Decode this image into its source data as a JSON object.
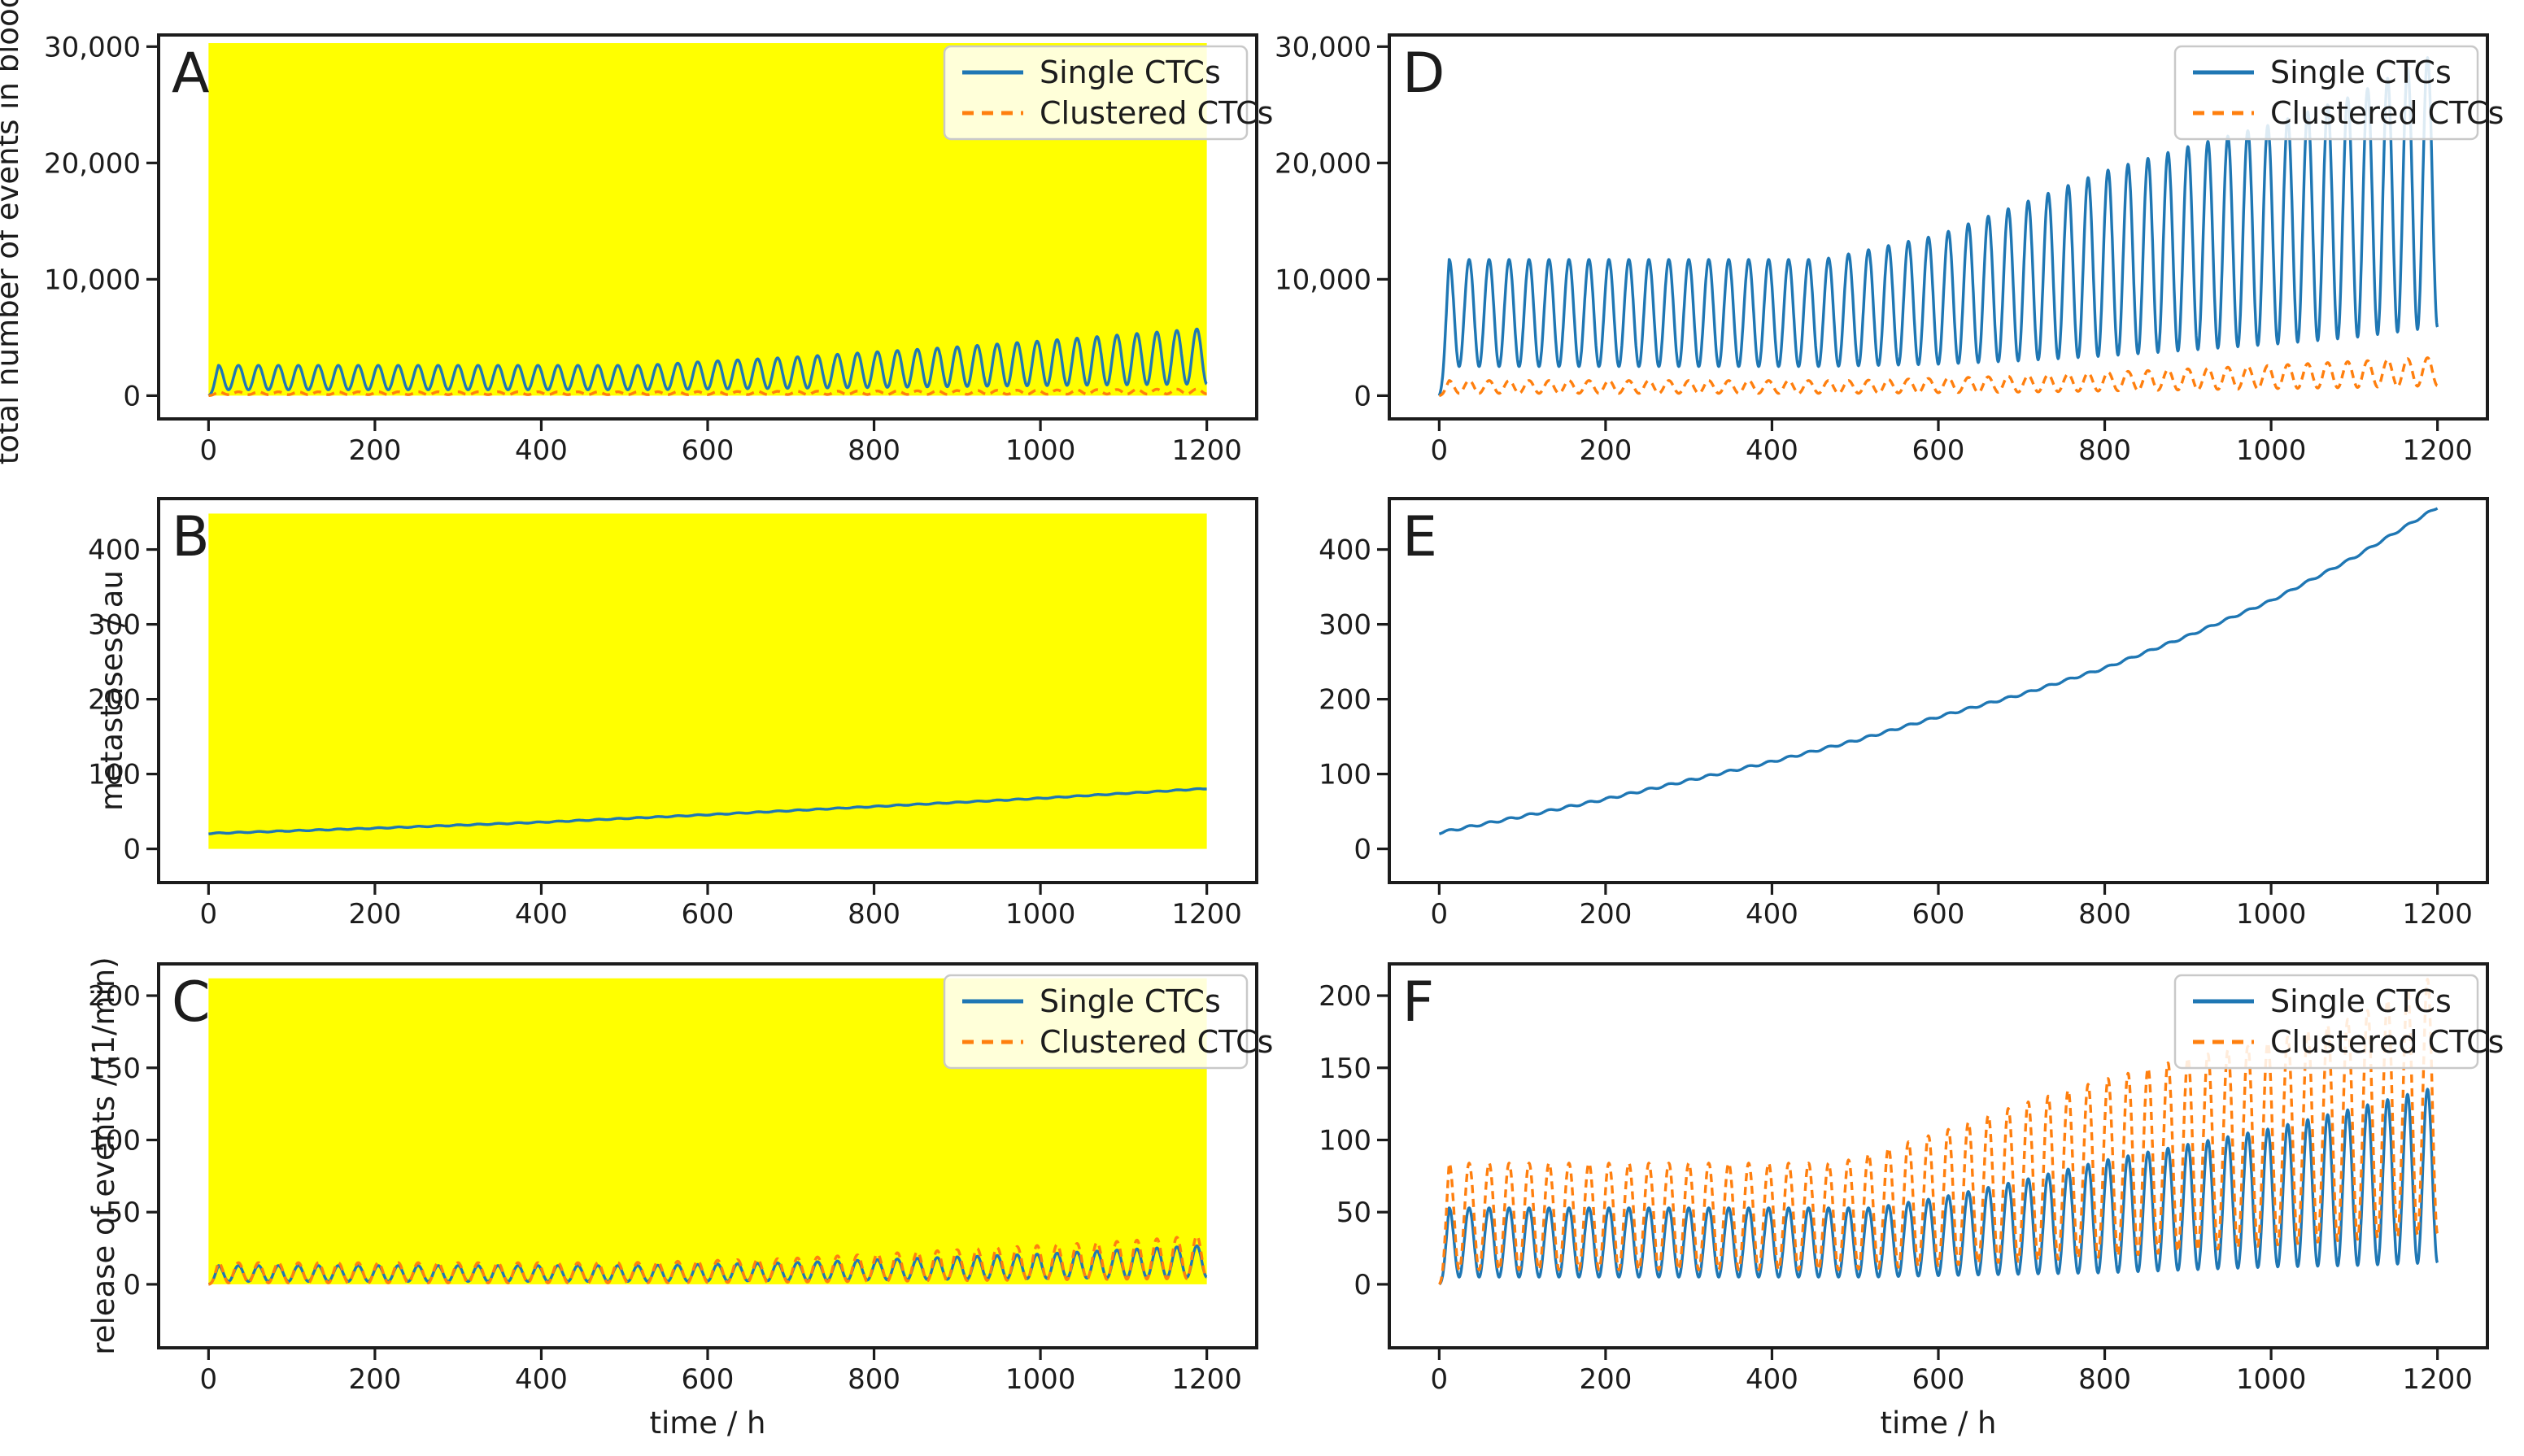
{
  "chart_data": {
    "figure_type": "multi-panel line chart (2 columns x 3 rows)",
    "oscillation_period_h": 24,
    "colors": {
      "single_ctcs": "#1f77b4",
      "clustered_ctcs": "#ff7f0e",
      "treatment_highlight": "#ffff00",
      "axis": "#1c1c1c",
      "legend_border": "#c9c9c9",
      "legend_fill": "rgba(255,255,255,0.85)"
    },
    "shared_x": {
      "xlabel": "time / h",
      "xlim": [
        -60,
        1260
      ],
      "xticks": [
        0,
        200,
        400,
        600,
        800,
        1000,
        1200
      ],
      "xtick_labels": [
        "0",
        "200",
        "400",
        "600",
        "800",
        "1000",
        "1200"
      ]
    },
    "legend": {
      "position": "upper right",
      "entries": [
        "Single CTCs",
        "Clustered CTCs"
      ]
    },
    "panels": [
      {
        "panel_label": "A",
        "type": "line",
        "grid": {
          "row": 0,
          "col": 0
        },
        "ylabel": "total number of events in blood",
        "xlabel": null,
        "xlim": [
          -60,
          1260
        ],
        "ylim": [
          -2000,
          31000
        ],
        "xticks": [
          0,
          200,
          400,
          600,
          800,
          1000,
          1200
        ],
        "xtick_labels": [
          "0",
          "200",
          "400",
          "600",
          "800",
          "1000",
          "1200"
        ],
        "yticks": [
          0,
          10000,
          20000,
          30000
        ],
        "ytick_labels": [
          "0",
          "10,000",
          "20,000",
          "30,000"
        ],
        "highlight": {
          "x": [
            0,
            1200
          ],
          "y": [
            0,
            30300
          ]
        },
        "legend_labels": [
          "Single CTCs",
          "Clustered CTCs"
        ],
        "series": [
          {
            "name": "Single CTCs",
            "color_key": "single_ctcs",
            "style": "solid",
            "wave": {
              "period": 24,
              "envelope": [
                [
                  0,
                  0,
                  0
                ],
                [
                  12,
                  500,
                  2600
                ],
                [
                  520,
                  500,
                  2600
                ],
                [
                  600,
                  560,
                  2950
                ],
                [
                  700,
                  630,
                  3300
                ],
                [
                  800,
                  700,
                  3750
                ],
                [
                  900,
                  780,
                  4200
                ],
                [
                  1000,
                  860,
                  4700
                ],
                [
                  1100,
                  930,
                  5250
                ],
                [
                  1200,
                  1000,
                  5800
                ]
              ]
            }
          },
          {
            "name": "Clustered CTCs",
            "color_key": "clustered_ctcs",
            "style": "dashed",
            "wave": {
              "period": 24,
              "envelope": [
                [
                  0,
                  0,
                  0
                ],
                [
                  12,
                  80,
                  330
                ],
                [
                  520,
                  80,
                  330
                ],
                [
                  800,
                  100,
                  400
                ],
                [
                  1000,
                  120,
                  480
                ],
                [
                  1200,
                  150,
                  580
                ]
              ]
            }
          }
        ]
      },
      {
        "panel_label": "B",
        "type": "line",
        "grid": {
          "row": 1,
          "col": 0
        },
        "ylabel": "metastases / au",
        "xlabel": null,
        "xlim": [
          -60,
          1260
        ],
        "ylim": [
          -45,
          468
        ],
        "xticks": [
          0,
          200,
          400,
          600,
          800,
          1000,
          1200
        ],
        "xtick_labels": [
          "0",
          "200",
          "400",
          "600",
          "800",
          "1000",
          "1200"
        ],
        "yticks": [
          0,
          100,
          200,
          300,
          400
        ],
        "ytick_labels": [
          "0",
          "100",
          "200",
          "300",
          "400"
        ],
        "highlight": {
          "x": [
            0,
            1200
          ],
          "y": [
            0,
            448
          ]
        },
        "legend_labels": null,
        "series": [
          {
            "name": "Single CTCs",
            "color_key": "single_ctcs",
            "style": "solid",
            "points": [
              [
                0,
                20
              ],
              [
                200,
                27
              ],
              [
                400,
                35
              ],
              [
                600,
                45
              ],
              [
                800,
                56
              ],
              [
                1000,
                67
              ],
              [
                1200,
                80
              ]
            ],
            "ripple": {
              "period": 24,
              "amplitude": 1.2
            }
          }
        ]
      },
      {
        "panel_label": "C",
        "type": "line",
        "grid": {
          "row": 2,
          "col": 0
        },
        "ylabel": "release of events / (1/min)",
        "xlabel": "time / h",
        "xlim": [
          -60,
          1260
        ],
        "ylim": [
          -44,
          222
        ],
        "xticks": [
          0,
          200,
          400,
          600,
          800,
          1000,
          1200
        ],
        "xtick_labels": [
          "0",
          "200",
          "400",
          "600",
          "800",
          "1000",
          "1200"
        ],
        "yticks": [
          0,
          50,
          100,
          150,
          200
        ],
        "ytick_labels": [
          "0",
          "50",
          "100",
          "150",
          "200"
        ],
        "highlight": {
          "x": [
            0,
            1200
          ],
          "y": [
            0,
            212
          ]
        },
        "legend_labels": [
          "Single CTCs",
          "Clustered CTCs"
        ],
        "series": [
          {
            "name": "Single CTCs",
            "color_key": "single_ctcs",
            "style": "solid",
            "wave": {
              "period": 24,
              "envelope": [
                [
                  0,
                  0,
                  0
                ],
                [
                  12,
                  2,
                  13
                ],
                [
                  520,
                  2,
                  13
                ],
                [
                  700,
                  2.5,
                  15
                ],
                [
                  800,
                  3,
                  17
                ],
                [
                  900,
                  3.5,
                  19
                ],
                [
                  1000,
                  4,
                  21
                ],
                [
                  1100,
                  4.5,
                  24
                ],
                [
                  1200,
                  5,
                  27
                ]
              ]
            }
          },
          {
            "name": "Clustered CTCs",
            "color_key": "clustered_ctcs",
            "style": "dashed",
            "wave": {
              "period": 24,
              "envelope": [
                [
                  0,
                  0,
                  0
                ],
                [
                  12,
                  1,
                  15
                ],
                [
                  500,
                  1,
                  15
                ],
                [
                  700,
                  1.5,
                  18
                ],
                [
                  800,
                  2,
                  21
                ],
                [
                  900,
                  2.5,
                  24
                ],
                [
                  1000,
                  3,
                  27
                ],
                [
                  1100,
                  3.5,
                  30
                ],
                [
                  1200,
                  4,
                  34
                ]
              ]
            }
          }
        ]
      },
      {
        "panel_label": "D",
        "type": "line",
        "grid": {
          "row": 0,
          "col": 1
        },
        "ylabel": null,
        "xlabel": null,
        "xlim": [
          -60,
          1260
        ],
        "ylim": [
          -2000,
          31000
        ],
        "xticks": [
          0,
          200,
          400,
          600,
          800,
          1000,
          1200
        ],
        "xtick_labels": [
          "0",
          "200",
          "400",
          "600",
          "800",
          "1000",
          "1200"
        ],
        "yticks": [
          0,
          10000,
          20000,
          30000
        ],
        "ytick_labels": [
          "0",
          "10,000",
          "20,000",
          "30,000"
        ],
        "highlight": null,
        "legend_labels": [
          "Single CTCs",
          "Clustered CTCs"
        ],
        "series": [
          {
            "name": "Single CTCs",
            "color_key": "single_ctcs",
            "style": "solid",
            "wave": {
              "period": 24,
              "envelope": [
                [
                  0,
                  0,
                  0
                ],
                [
                  12,
                  2500,
                  11700
                ],
                [
                  460,
                  2500,
                  11700
                ],
                [
                  600,
                  2700,
                  13800
                ],
                [
                  700,
                  3000,
                  16500
                ],
                [
                  800,
                  3400,
                  19300
                ],
                [
                  900,
                  3900,
                  21400
                ],
                [
                  1000,
                  4400,
                  23300
                ],
                [
                  1100,
                  5000,
                  25800
                ],
                [
                  1200,
                  5900,
                  29500
                ]
              ]
            }
          },
          {
            "name": "Clustered CTCs",
            "color_key": "clustered_ctcs",
            "style": "dashed",
            "wave": {
              "period": 24,
              "envelope": [
                [
                  0,
                  0,
                  0
                ],
                [
                  12,
                  200,
                  1300
                ],
                [
                  500,
                  200,
                  1300
                ],
                [
                  700,
                  300,
                  1700
                ],
                [
                  800,
                  400,
                  2000
                ],
                [
                  900,
                  500,
                  2300
                ],
                [
                  1000,
                  600,
                  2600
                ],
                [
                  1100,
                  700,
                  2950
                ],
                [
                  1200,
                  850,
                  3300
                ]
              ]
            }
          }
        ]
      },
      {
        "panel_label": "E",
        "type": "line",
        "grid": {
          "row": 1,
          "col": 1
        },
        "ylabel": null,
        "xlabel": null,
        "xlim": [
          -60,
          1260
        ],
        "ylim": [
          -45,
          468
        ],
        "xticks": [
          0,
          200,
          400,
          600,
          800,
          1000,
          1200
        ],
        "xtick_labels": [
          "0",
          "200",
          "400",
          "600",
          "800",
          "1000",
          "1200"
        ],
        "yticks": [
          0,
          100,
          200,
          300,
          400
        ],
        "ytick_labels": [
          "0",
          "100",
          "200",
          "300",
          "400"
        ],
        "highlight": null,
        "legend_labels": null,
        "series": [
          {
            "name": "Single CTCs",
            "color_key": "single_ctcs",
            "style": "solid",
            "points": [
              [
                0,
                20
              ],
              [
                100,
                42
              ],
              [
                200,
                65
              ],
              [
                300,
                90
              ],
              [
                400,
                115
              ],
              [
                500,
                143
              ],
              [
                600,
                175
              ],
              [
                700,
                205
              ],
              [
                800,
                240
              ],
              [
                900,
                283
              ],
              [
                1000,
                330
              ],
              [
                1100,
                388
              ],
              [
                1200,
                455
              ]
            ],
            "ripple": {
              "period": 24,
              "amplitude": 3
            }
          }
        ]
      },
      {
        "panel_label": "F",
        "type": "line",
        "grid": {
          "row": 2,
          "col": 1
        },
        "ylabel": null,
        "xlabel": "time / h",
        "xlim": [
          -60,
          1260
        ],
        "ylim": [
          -44,
          222
        ],
        "xticks": [
          0,
          200,
          400,
          600,
          800,
          1000,
          1200
        ],
        "xtick_labels": [
          "0",
          "200",
          "400",
          "600",
          "800",
          "1000",
          "1200"
        ],
        "yticks": [
          0,
          50,
          100,
          150,
          200
        ],
        "ytick_labels": [
          "0",
          "50",
          "100",
          "150",
          "200"
        ],
        "highlight": null,
        "legend_labels": [
          "Single CTCs",
          "Clustered CTCs"
        ],
        "series": [
          {
            "name": "Single CTCs",
            "color_key": "single_ctcs",
            "style": "solid",
            "wave": {
              "period": 24,
              "envelope": [
                [
                  0,
                  0,
                  0
                ],
                [
                  12,
                  5,
                  53
                ],
                [
                  520,
                  5,
                  53
                ],
                [
                  600,
                  6,
                  60
                ],
                [
                  700,
                  7,
                  72
                ],
                [
                  800,
                  8,
                  86
                ],
                [
                  900,
                  10,
                  97
                ],
                [
                  1000,
                  12,
                  108
                ],
                [
                  1100,
                  13,
                  122
                ],
                [
                  1200,
                  15,
                  137
                ]
              ]
            }
          },
          {
            "name": "Clustered CTCs",
            "color_key": "clustered_ctcs",
            "style": "dashed",
            "wave": {
              "period": 24,
              "envelope": [
                [
                  0,
                  0,
                  0
                ],
                [
                  12,
                  10,
                  84
                ],
                [
                  480,
                  10,
                  84
                ],
                [
                  600,
                  13,
                  105
                ],
                [
                  700,
                  16,
                  125
                ],
                [
                  800,
                  19,
                  142
                ],
                [
                  900,
                  23,
                  157
                ],
                [
                  1000,
                  27,
                  168
                ],
                [
                  1100,
                  31,
                  185
                ],
                [
                  1200,
                  35,
                  215
                ]
              ]
            }
          }
        ]
      }
    ]
  }
}
